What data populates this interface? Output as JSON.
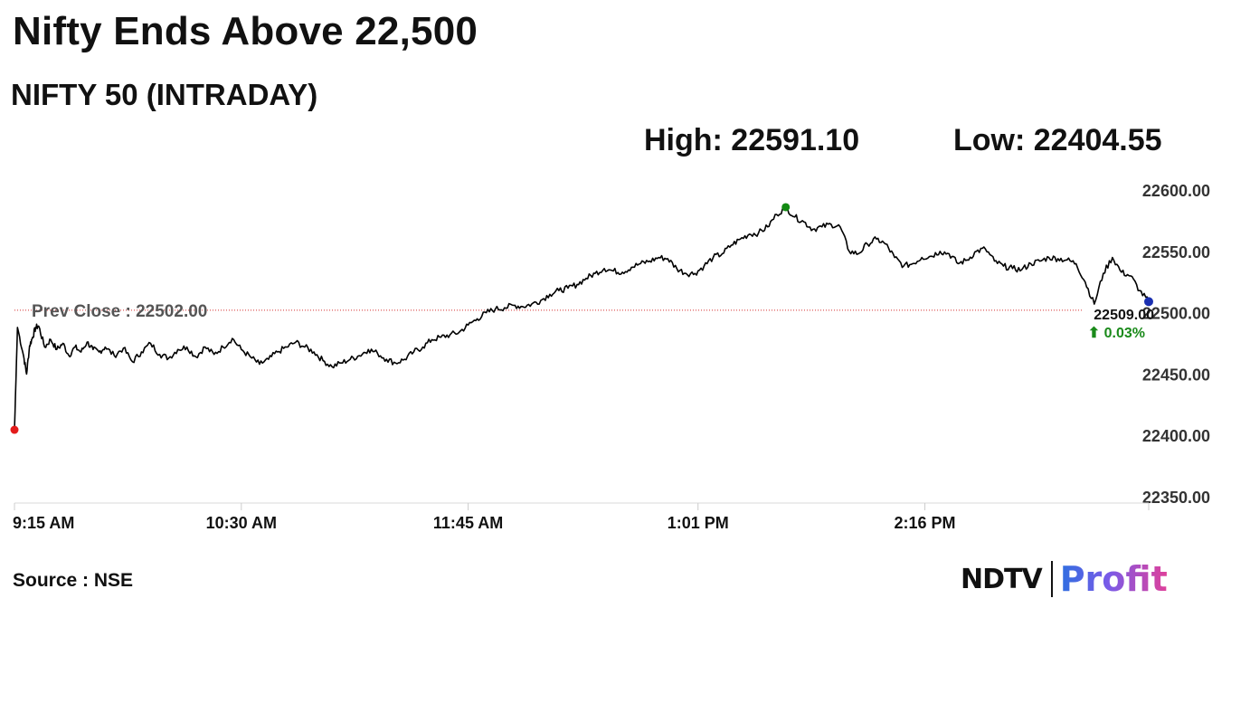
{
  "headline": "Nifty Ends Above 22,500",
  "subheadline": "NIFTY 50 (INTRADAY)",
  "high_label": "High: 22591.10",
  "low_label": "Low: 22404.55",
  "source": "Source : NSE",
  "brand": {
    "ndtv": "NDTV",
    "profit": "Profit"
  },
  "colors": {
    "line": "#000000",
    "prev_close": "#d32f2f",
    "high_marker": "#138a13",
    "low_marker": "#e31b1b",
    "last_marker": "#1a2fb0",
    "change_up": "#1a8a1a"
  },
  "chart_data": {
    "type": "line",
    "title": "NIFTY 50 (INTRADAY)",
    "x_ticks": [
      "9:15 AM",
      "10:30 AM",
      "11:45 AM",
      "1:01 PM",
      "2:16 PM"
    ],
    "y_ticks": [
      "22600.00",
      "22550.00",
      "22500.00",
      "22450.00",
      "22400.00",
      "22350.00"
    ],
    "ylim": [
      22350,
      22600
    ],
    "xlim_minutes": [
      0,
      375
    ],
    "prev_close": 22502.0,
    "prev_close_label": "Prev Close : 22502.00",
    "high": 22591.1,
    "low": 22404.55,
    "last_value": 22509.0,
    "last_label": "22509.00",
    "change_label": "⬆ 0.03%",
    "series": [
      {
        "points": [
          [
            0,
            22404.55
          ],
          [
            1,
            22488
          ],
          [
            3,
            22465
          ],
          [
            4,
            22450
          ],
          [
            5,
            22473
          ],
          [
            6,
            22480
          ],
          [
            7,
            22488
          ],
          [
            8,
            22489
          ],
          [
            10,
            22472
          ],
          [
            12,
            22478
          ],
          [
            14,
            22470
          ],
          [
            16,
            22475
          ],
          [
            18,
            22465
          ],
          [
            20,
            22472
          ],
          [
            22,
            22468
          ],
          [
            24,
            22476
          ],
          [
            26,
            22470
          ],
          [
            28,
            22468
          ],
          [
            30,
            22472
          ],
          [
            33,
            22465
          ],
          [
            36,
            22471
          ],
          [
            39,
            22460
          ],
          [
            42,
            22468
          ],
          [
            45,
            22475
          ],
          [
            48,
            22466
          ],
          [
            51,
            22463
          ],
          [
            54,
            22470
          ],
          [
            57,
            22472
          ],
          [
            60,
            22464
          ],
          [
            63,
            22472
          ],
          [
            66,
            22466
          ],
          [
            69,
            22472
          ],
          [
            72,
            22479
          ],
          [
            75,
            22470
          ],
          [
            78,
            22464
          ],
          [
            81,
            22458
          ],
          [
            84,
            22462
          ],
          [
            87,
            22468
          ],
          [
            90,
            22472
          ],
          [
            93,
            22476
          ],
          [
            96,
            22472
          ],
          [
            99,
            22468
          ],
          [
            102,
            22461
          ],
          [
            105,
            22456
          ],
          [
            108,
            22459
          ],
          [
            111,
            22462
          ],
          [
            114,
            22465
          ],
          [
            117,
            22470
          ],
          [
            120,
            22467
          ],
          [
            123,
            22462
          ],
          [
            126,
            22459
          ],
          [
            129,
            22462
          ],
          [
            132,
            22468
          ],
          [
            135,
            22472
          ],
          [
            138,
            22478
          ],
          [
            141,
            22480
          ],
          [
            144,
            22482
          ],
          [
            147,
            22484
          ],
          [
            150,
            22490
          ],
          [
            153,
            22495
          ],
          [
            156,
            22500
          ],
          [
            159,
            22503
          ],
          [
            162,
            22504
          ],
          [
            165,
            22506
          ],
          [
            168,
            22505
          ],
          [
            171,
            22507
          ],
          [
            174,
            22510
          ],
          [
            177,
            22515
          ],
          [
            180,
            22518
          ],
          [
            183,
            22520
          ],
          [
            186,
            22523
          ],
          [
            189,
            22528
          ],
          [
            192,
            22532
          ],
          [
            195,
            22536
          ],
          [
            198,
            22534
          ],
          [
            201,
            22533
          ],
          [
            204,
            22537
          ],
          [
            207,
            22540
          ],
          [
            210,
            22542
          ],
          [
            213,
            22545
          ],
          [
            216,
            22544
          ],
          [
            219,
            22536
          ],
          [
            222,
            22532
          ],
          [
            225,
            22532
          ],
          [
            228,
            22538
          ],
          [
            231,
            22545
          ],
          [
            234,
            22548
          ],
          [
            237,
            22555
          ],
          [
            240,
            22560
          ],
          [
            243,
            22564
          ],
          [
            246,
            22565
          ],
          [
            249,
            22570
          ],
          [
            252,
            22580
          ],
          [
            255,
            22586
          ],
          [
            258,
            22578
          ],
          [
            261,
            22574
          ],
          [
            264,
            22568
          ],
          [
            267,
            22570
          ],
          [
            270,
            22572
          ],
          [
            273,
            22570
          ],
          [
            276,
            22550
          ],
          [
            279,
            22548
          ],
          [
            282,
            22556
          ],
          [
            285,
            22560
          ],
          [
            288,
            22556
          ],
          [
            291,
            22545
          ],
          [
            294,
            22538
          ],
          [
            297,
            22540
          ],
          [
            300,
            22545
          ],
          [
            303,
            22546
          ],
          [
            306,
            22550
          ],
          [
            309,
            22548
          ],
          [
            312,
            22540
          ],
          [
            315,
            22543
          ],
          [
            318,
            22550
          ],
          [
            321,
            22552
          ],
          [
            324,
            22542
          ],
          [
            327,
            22538
          ],
          [
            330,
            22536
          ],
          [
            333,
            22535
          ],
          [
            336,
            22540
          ],
          [
            339,
            22542
          ],
          [
            342,
            22545
          ],
          [
            345,
            22544
          ],
          [
            348,
            22543
          ],
          [
            351,
            22540
          ],
          [
            354,
            22525
          ],
          [
            357,
            22507
          ],
          [
            360,
            22532
          ],
          [
            363,
            22545
          ],
          [
            366,
            22533
          ],
          [
            369,
            22530
          ],
          [
            372,
            22518
          ],
          [
            375,
            22509
          ]
        ]
      }
    ]
  }
}
